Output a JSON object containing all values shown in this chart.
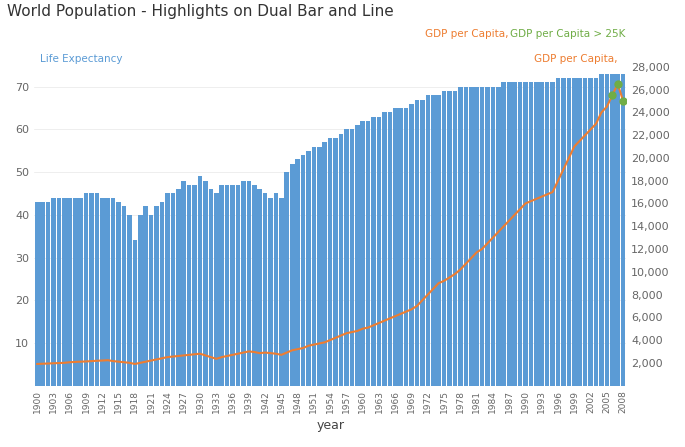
{
  "title": "World Population - Highlights on Dual Bar and Line",
  "xlabel": "year",
  "legend_left_label": "Life Expectancy",
  "legend_right_label1": "GDP per Capita",
  "legend_right_label2": "GDP per Capita > 25K",
  "bar_color": "#5B9BD5",
  "line_color": "#ED7D31",
  "highlight_color": "#70AD47",
  "bar_alpha": 1.0,
  "years": [
    1900,
    1901,
    1902,
    1903,
    1904,
    1905,
    1906,
    1907,
    1908,
    1909,
    1910,
    1911,
    1912,
    1913,
    1914,
    1915,
    1916,
    1917,
    1918,
    1919,
    1920,
    1921,
    1922,
    1923,
    1924,
    1925,
    1926,
    1927,
    1928,
    1929,
    1930,
    1931,
    1932,
    1933,
    1934,
    1935,
    1936,
    1937,
    1938,
    1939,
    1940,
    1941,
    1942,
    1943,
    1944,
    1945,
    1946,
    1947,
    1948,
    1949,
    1950,
    1951,
    1952,
    1953,
    1954,
    1955,
    1956,
    1957,
    1958,
    1959,
    1960,
    1961,
    1962,
    1963,
    1964,
    1965,
    1966,
    1967,
    1968,
    1969,
    1970,
    1971,
    1972,
    1973,
    1974,
    1975,
    1976,
    1977,
    1978,
    1979,
    1980,
    1981,
    1982,
    1983,
    1984,
    1985,
    1986,
    1987,
    1988,
    1989,
    1990,
    1991,
    1992,
    1993,
    1994,
    1995,
    1996,
    1997,
    1998,
    1999,
    2000,
    2001,
    2002,
    2003,
    2004,
    2005,
    2006,
    2007,
    2008
  ],
  "life_exp": [
    43,
    43,
    43,
    44,
    44,
    44,
    44,
    44,
    44,
    45,
    45,
    45,
    44,
    44,
    44,
    43,
    42,
    40,
    34,
    40,
    42,
    40,
    42,
    43,
    45,
    45,
    46,
    48,
    47,
    47,
    49,
    48,
    46,
    45,
    47,
    47,
    47,
    47,
    48,
    48,
    47,
    46,
    45,
    44,
    45,
    44,
    50,
    52,
    53,
    54,
    55,
    56,
    56,
    57,
    58,
    58,
    59,
    60,
    60,
    61,
    62,
    62,
    63,
    63,
    64,
    64,
    65,
    65,
    65,
    66,
    67,
    67,
    68,
    68,
    68,
    69,
    69,
    69,
    70,
    70,
    70,
    70,
    70,
    70,
    70,
    70,
    71,
    71,
    71,
    71,
    71,
    71,
    71,
    71,
    71,
    71,
    72,
    72,
    72,
    72,
    72,
    72,
    72,
    72,
    73,
    73,
    73,
    73,
    73
  ],
  "gdp_pc": [
    1900,
    1920,
    1940,
    1960,
    1980,
    2000,
    2050,
    2080,
    2100,
    2120,
    2150,
    2180,
    2200,
    2230,
    2150,
    2100,
    2050,
    2000,
    1900,
    2000,
    2100,
    2200,
    2300,
    2400,
    2500,
    2550,
    2600,
    2650,
    2700,
    2750,
    2800,
    2650,
    2500,
    2350,
    2500,
    2600,
    2700,
    2800,
    2900,
    3000,
    2950,
    2850,
    2900,
    2850,
    2800,
    2700,
    2900,
    3100,
    3200,
    3300,
    3500,
    3600,
    3700,
    3800,
    4000,
    4200,
    4400,
    4600,
    4700,
    4800,
    5000,
    5100,
    5300,
    5500,
    5700,
    5900,
    6100,
    6300,
    6500,
    6700,
    7000,
    7500,
    8000,
    8500,
    9000,
    9200,
    9500,
    9800,
    10200,
    10700,
    11200,
    11700,
    12000,
    12500,
    13000,
    13500,
    14000,
    14500,
    15000,
    15500,
    16000,
    16200,
    16400,
    16600,
    16800,
    17000,
    18000,
    19000,
    20000,
    21000,
    21500,
    22000,
    22500,
    23000,
    24000,
    24500,
    25500,
    26500,
    25000
  ],
  "ylim_left": [
    0,
    80
  ],
  "ylim_right": [
    0,
    30000
  ],
  "yticks_right": [
    2000,
    4000,
    6000,
    8000,
    10000,
    12000,
    14000,
    16000,
    18000,
    20000,
    22000,
    24000,
    26000,
    28000
  ],
  "ytick_labels_right": [
    "2,000",
    "4,000",
    "6,000",
    "8,000",
    "10,000",
    "12,000",
    "14,000",
    "16,000",
    "18,000",
    "20,000",
    "22,000",
    "24,000",
    "26,000",
    "28,000"
  ],
  "yticks_left": [
    10,
    20,
    30,
    40,
    50,
    60,
    70
  ],
  "xtick_years": [
    1900,
    1903,
    1906,
    1909,
    1912,
    1915,
    1918,
    1921,
    1924,
    1927,
    1930,
    1933,
    1936,
    1939,
    1942,
    1945,
    1948,
    1951,
    1954,
    1957,
    1960,
    1963,
    1966,
    1969,
    1972,
    1975,
    1978,
    1981,
    1984,
    1987,
    1990,
    1993,
    1996,
    1999,
    2002,
    2005,
    2008
  ],
  "highlight_threshold": 25000,
  "bg_color": "#FFFFFF",
  "grid_color": "#E8E8E8",
  "left_label_color": "#5B9BD5",
  "right_label_color1": "#ED7D31",
  "right_label_color2": "#70AD47"
}
